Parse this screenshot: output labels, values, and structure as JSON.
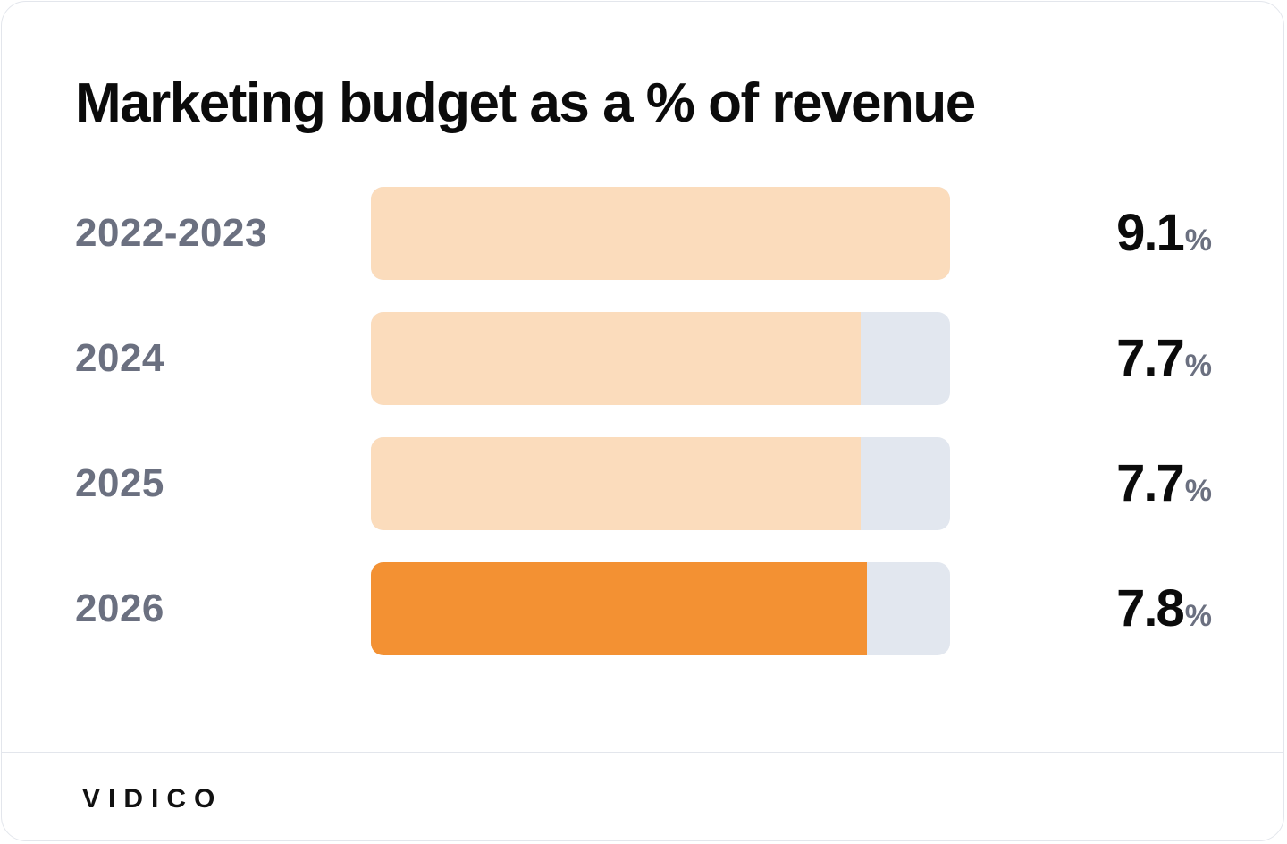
{
  "colors": {
    "bar_fill_past": "#fbdcbc",
    "bar_fill_highlight": "#f39133",
    "bar_track": "#e2e7ef",
    "label_gray": "#6b7080",
    "text_dark": "#0b0b0b"
  },
  "chart_data": {
    "type": "bar",
    "orientation": "horizontal",
    "title": "Marketing budget as a % of revenue",
    "categories": [
      "2022-2023",
      "2024",
      "2025",
      "2026"
    ],
    "values": [
      9.1,
      7.7,
      7.7,
      7.8
    ],
    "value_labels": [
      "9.1",
      "7.7",
      "7.7",
      "7.8"
    ],
    "unit": "%",
    "xlim": [
      0,
      9.1
    ],
    "highlight_index": 3,
    "grid": false
  },
  "brand": "VIDICO"
}
